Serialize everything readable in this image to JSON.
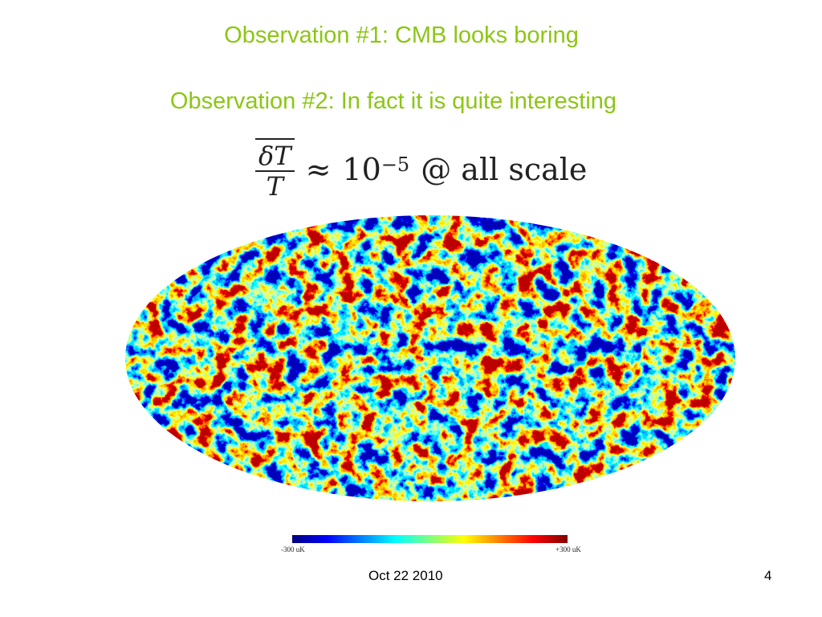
{
  "slide": {
    "title_1": "Observation #1: CMB looks boring",
    "title_2": "Observation #2: In fact it is quite interesting",
    "formula": {
      "numerator": "δT",
      "denominator": "T",
      "approx": "≈",
      "base": "10",
      "exponent": "−5",
      "suffix": "@ all scale"
    },
    "colorbar": {
      "min_label": "-300 uK",
      "max_label": "+300 uK"
    },
    "footer": {
      "date": "Oct 22 2010",
      "page_number": "4"
    },
    "colors": {
      "title": "#8cc614"
    }
  }
}
